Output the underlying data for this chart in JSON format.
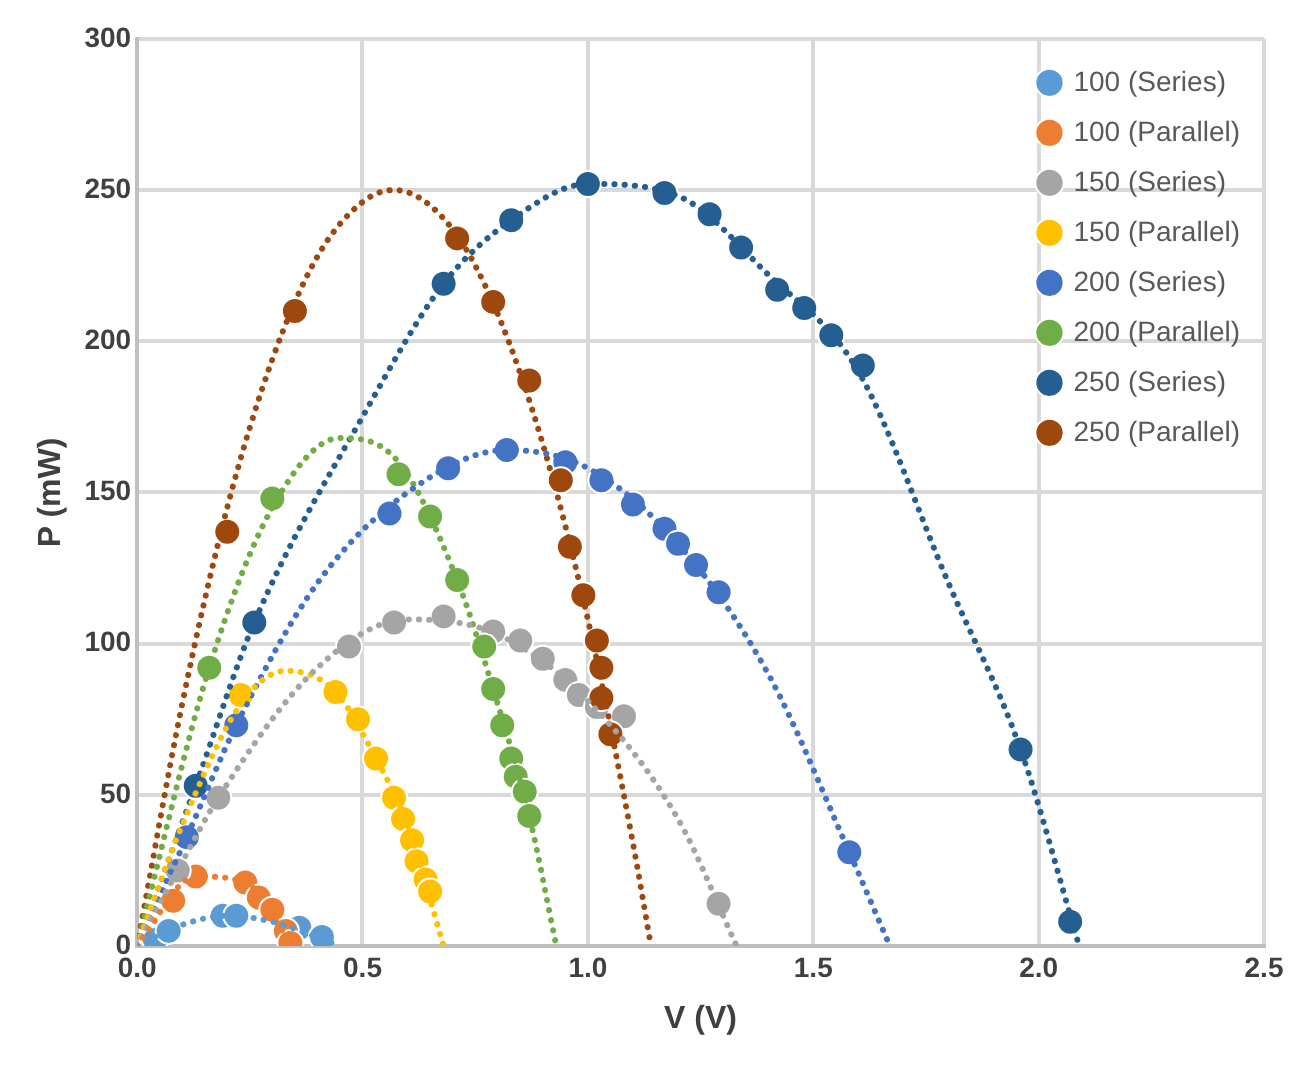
{
  "chart_data": {
    "type": "scatter",
    "xlabel": "V (V)",
    "ylabel": "P (mW)",
    "xlim": [
      0,
      2.5
    ],
    "xticks": [
      {
        "value": 0,
        "label": "0.0"
      },
      {
        "value": 0.5,
        "label": "0.5"
      },
      {
        "value": 1,
        "label": "1.0"
      },
      {
        "value": 1.5,
        "label": "1.5"
      },
      {
        "value": 2,
        "label": "2.0"
      },
      {
        "value": 2.5,
        "label": "2.5"
      }
    ],
    "ylim": [
      0,
      300
    ],
    "yticks": [
      0,
      50,
      100,
      150,
      200,
      250,
      300
    ],
    "grid": true,
    "legend": "top right",
    "marker": "circle",
    "series": [
      {
        "name": "100 (Series)",
        "color": "#5b9bd5",
        "x": [
          0.04,
          0.07,
          0.19,
          0.22,
          0.36,
          0.41
        ],
        "values": [
          2,
          5,
          10,
          10,
          6,
          3
        ]
      },
      {
        "name": "100 (Parallel)",
        "color": "#ed7d31",
        "x": [
          0.08,
          0.13,
          0.24,
          0.27,
          0.3,
          0.33,
          0.34
        ],
        "values": [
          15,
          23,
          21,
          16,
          12,
          5,
          1
        ]
      },
      {
        "name": "150 (Series)",
        "color": "#a5a5a5",
        "x": [
          0.09,
          0.18,
          0.47,
          0.57,
          0.68,
          0.79,
          0.85,
          0.9,
          0.95,
          0.98,
          1.02,
          1.08,
          1.29
        ],
        "values": [
          25,
          49,
          99,
          107,
          109,
          104,
          101,
          95,
          88,
          83,
          79,
          76,
          14
        ]
      },
      {
        "name": "150 (Parallel)",
        "color": "#ffc000",
        "x": [
          0.23,
          0.44,
          0.49,
          0.53,
          0.57,
          0.59,
          0.61,
          0.62,
          0.64,
          0.65
        ],
        "values": [
          83,
          84,
          75,
          62,
          49,
          42,
          35,
          28,
          22,
          18
        ]
      },
      {
        "name": "200 (Series)",
        "color": "#4472c4",
        "x": [
          0.11,
          0.22,
          0.56,
          0.69,
          0.82,
          0.95,
          1.03,
          1.1,
          1.17,
          1.2,
          1.24,
          1.29,
          1.58
        ],
        "values": [
          36,
          73,
          143,
          158,
          164,
          160,
          154,
          146,
          138,
          133,
          126,
          117,
          31
        ]
      },
      {
        "name": "200 (Parallel)",
        "color": "#70ad47",
        "x": [
          0.16,
          0.3,
          0.58,
          0.65,
          0.71,
          0.77,
          0.79,
          0.81,
          0.83,
          0.84,
          0.86,
          0.87
        ],
        "values": [
          92,
          148,
          156,
          142,
          121,
          99,
          85,
          73,
          62,
          56,
          51,
          43
        ]
      },
      {
        "name": "250 (Series)",
        "color": "#255e91",
        "x": [
          0.13,
          0.26,
          0.68,
          0.83,
          1.0,
          1.17,
          1.27,
          1.34,
          1.42,
          1.48,
          1.54,
          1.61,
          1.96,
          2.07
        ],
        "values": [
          53,
          107,
          219,
          240,
          252,
          249,
          242,
          231,
          217,
          211,
          202,
          192,
          65,
          8
        ]
      },
      {
        "name": "250 (Parallel)",
        "color": "#9e480e",
        "x": [
          0.2,
          0.35,
          0.71,
          0.79,
          0.87,
          0.94,
          0.96,
          0.99,
          1.02,
          1.03,
          1.03,
          1.05
        ],
        "values": [
          137,
          210,
          234,
          213,
          187,
          154,
          132,
          116,
          101,
          92,
          82,
          70
        ]
      },
      {
        "type": "line",
        "line_style": "dotted",
        "marker": "none",
        "color": "#5b9bd5",
        "x": [
          0,
          0.1,
          0.2,
          0.3,
          0.45
        ],
        "values": [
          0,
          7,
          10,
          8,
          0
        ]
      },
      {
        "type": "line",
        "line_style": "dotted",
        "marker": "none",
        "color": "#ed7d31",
        "x": [
          0,
          0.13,
          0.24,
          0.34
        ],
        "values": [
          0,
          23,
          21,
          1
        ]
      },
      {
        "type": "line",
        "line_style": "dotted",
        "marker": "none",
        "color": "#a5a5a5",
        "x": [
          0,
          0.09,
          0.18,
          0.4,
          0.6,
          0.8,
          1.0,
          1.2,
          1.33
        ],
        "values": [
          0,
          25,
          49,
          92,
          108,
          103,
          81,
          42,
          0
        ]
      },
      {
        "type": "line",
        "line_style": "dotted",
        "marker": "none",
        "color": "#ffc000",
        "x": [
          0,
          0.1,
          0.23,
          0.33,
          0.44,
          0.53,
          0.6,
          0.68
        ],
        "values": [
          0,
          40,
          80,
          91,
          84,
          62,
          40,
          0
        ]
      },
      {
        "type": "line",
        "line_style": "dotted",
        "marker": "none",
        "color": "#4472c4",
        "x": [
          0,
          0.11,
          0.22,
          0.4,
          0.6,
          0.82,
          1.0,
          1.2,
          1.4,
          1.58,
          1.67
        ],
        "values": [
          0,
          36,
          73,
          120,
          150,
          164,
          158,
          133,
          90,
          31,
          0
        ]
      },
      {
        "type": "line",
        "line_style": "dotted",
        "marker": "none",
        "color": "#70ad47",
        "x": [
          0,
          0.16,
          0.3,
          0.45,
          0.58,
          0.71,
          0.8,
          0.87,
          0.93
        ],
        "values": [
          0,
          92,
          145,
          168,
          160,
          121,
          80,
          43,
          0
        ]
      },
      {
        "type": "line",
        "line_style": "dotted",
        "marker": "none",
        "color": "#255e91",
        "x": [
          0,
          0.13,
          0.26,
          0.5,
          0.68,
          0.83,
          1.0,
          1.2,
          1.4,
          1.6,
          1.8,
          1.96,
          2.09
        ],
        "values": [
          0,
          53,
          107,
          175,
          219,
          240,
          252,
          248,
          222,
          190,
          120,
          65,
          0
        ]
      },
      {
        "type": "line",
        "line_style": "dotted",
        "marker": "none",
        "color": "#9e480e",
        "x": [
          0,
          0.1,
          0.2,
          0.3,
          0.4,
          0.5,
          0.57,
          0.7,
          0.8,
          0.9,
          1.0,
          1.1,
          1.14
        ],
        "values": [
          0,
          80,
          145,
          194,
          228,
          246,
          250,
          237,
          209,
          166,
          108,
          34,
          0
        ]
      }
    ]
  }
}
